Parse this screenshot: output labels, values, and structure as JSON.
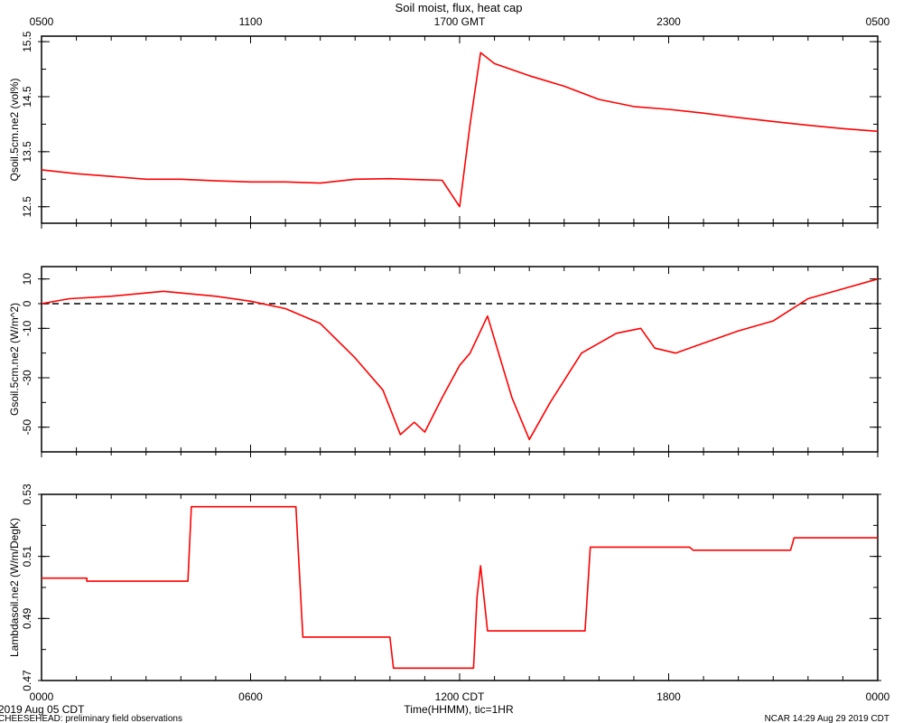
{
  "title": "Soil moist, flux, heat cap",
  "top_axis": {
    "tick_labels": [
      "0500",
      "1100",
      "1700 GMT",
      "2300",
      "0500"
    ]
  },
  "bottom_axis": {
    "tick_labels": [
      "0000",
      "0600",
      "1200 CDT",
      "1800",
      "0000"
    ],
    "xlabel": "Time(HHMM), tic=1HR"
  },
  "footer": {
    "date": "2019 Aug 05 CDT",
    "project": "CHEESEHEAD: preliminary field observations",
    "stamp": "NCAR 14:29 Aug 29 2019 CDT"
  },
  "colors": {
    "series": "#ff0000",
    "axis": "#000000",
    "zero_line": "#000000"
  },
  "chart_data": [
    {
      "type": "line",
      "ylabel": "Qsoil.5cm.ne2 (vol%)",
      "ylim": [
        12.2,
        15.6
      ],
      "yticks": [
        "12.5",
        "13.5",
        "14.5",
        "15.5"
      ],
      "xlim": [
        0,
        24
      ],
      "x": [
        0,
        1,
        2,
        3,
        4,
        5,
        6,
        7,
        8,
        9,
        10,
        11,
        11.5,
        12,
        12.3,
        12.6,
        13,
        14,
        15,
        16,
        17,
        18,
        19,
        20,
        21,
        22,
        23,
        24
      ],
      "y": [
        13.17,
        13.1,
        13.05,
        13.0,
        13.0,
        12.97,
        12.95,
        12.95,
        12.93,
        13.0,
        13.01,
        12.99,
        12.98,
        12.5,
        14.0,
        15.3,
        15.1,
        14.88,
        14.69,
        14.45,
        14.32,
        14.27,
        14.2,
        14.12,
        14.05,
        13.98,
        13.92,
        13.87
      ]
    },
    {
      "type": "line",
      "ylabel": "Gsoil.5cm.ne2 (W/m^2)",
      "ylim": [
        -60,
        15
      ],
      "yticks": [
        "-50",
        "-30",
        "-10",
        "0",
        "10"
      ],
      "xlim": [
        0,
        24
      ],
      "zero_line": true,
      "x": [
        0,
        0.8,
        2,
        3.5,
        5,
        6,
        7,
        8,
        9,
        9.8,
        10.3,
        10.7,
        11,
        11.5,
        12,
        12.3,
        12.8,
        13.5,
        14,
        14.6,
        15.5,
        16.5,
        17.2,
        17.6,
        18.2,
        19,
        20,
        21,
        22,
        23,
        24
      ],
      "y": [
        0,
        2,
        3,
        5,
        3,
        1,
        -2,
        -8,
        -22,
        -35,
        -53,
        -48,
        -52,
        -38,
        -25,
        -20,
        -5,
        -38,
        -55,
        -40,
        -20,
        -12,
        -10,
        -18,
        -20,
        -16,
        -11,
        -7,
        2,
        6,
        10
      ]
    },
    {
      "type": "line",
      "ylabel": "Lambdasoil.ne2 (W/m/DegK)",
      "ylim": [
        0.47,
        0.53
      ],
      "yticks": [
        "0.47",
        "0.49",
        "0.51",
        "0.53"
      ],
      "xlim": [
        0,
        24
      ],
      "x": [
        0,
        1.3,
        1.3,
        4.2,
        4.3,
        7.3,
        7.5,
        10,
        10.1,
        12.4,
        12.5,
        12.6,
        12.8,
        15.6,
        15.75,
        18.6,
        18.7,
        21.5,
        21.6,
        24
      ],
      "y": [
        0.503,
        0.503,
        0.502,
        0.502,
        0.526,
        0.526,
        0.484,
        0.484,
        0.474,
        0.474,
        0.497,
        0.507,
        0.486,
        0.486,
        0.513,
        0.513,
        0.512,
        0.512,
        0.516,
        0.516
      ]
    }
  ]
}
